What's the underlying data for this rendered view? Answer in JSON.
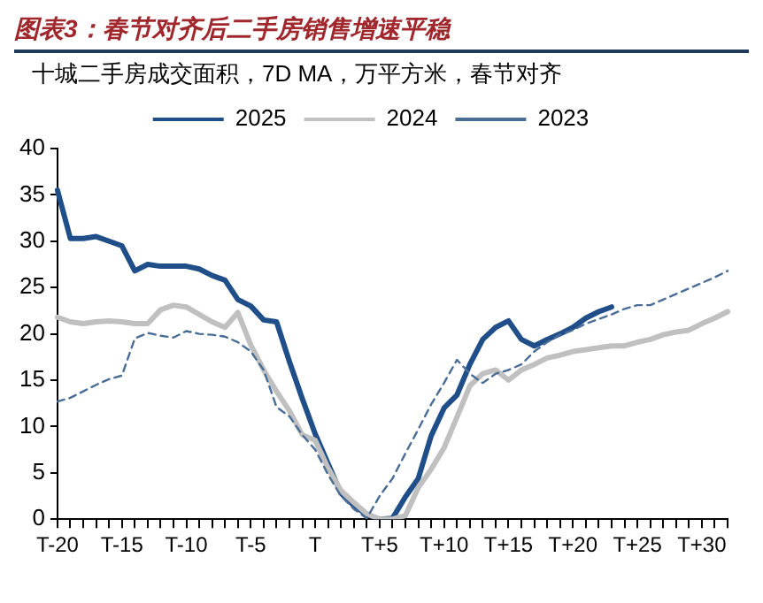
{
  "chart_data": {
    "type": "line",
    "title": "图表3：春节对齐后二手房销售增速平稳",
    "subtitle": "十城二手房成交面积，7D MA，万平方米，春节对齐",
    "categories": [
      "T-20",
      null,
      null,
      null,
      null,
      "T-15",
      null,
      null,
      null,
      null,
      "T-10",
      null,
      null,
      null,
      null,
      "T-5",
      null,
      null,
      null,
      null,
      "T",
      null,
      null,
      null,
      null,
      "T+5",
      null,
      null,
      null,
      null,
      "T+10",
      null,
      null,
      null,
      null,
      "T+15",
      null,
      null,
      null,
      null,
      "T+20",
      null,
      null,
      null,
      null,
      "T+25",
      null,
      null,
      null,
      null,
      "T+30",
      null,
      null
    ],
    "series": [
      {
        "name": "2025",
        "color": "#1f4e89",
        "values": [
          35.5,
          30.3,
          30.3,
          30.5,
          30,
          29.5,
          26.8,
          27.5,
          27.3,
          27.3,
          27.3,
          27,
          26.3,
          25.8,
          23.7,
          23,
          21.5,
          21.3,
          17,
          13,
          9.2,
          6,
          2.8,
          1.5,
          0.5,
          0,
          0.1,
          2.4,
          4.4,
          9,
          12,
          13.4,
          16.7,
          19.4,
          20.7,
          21.4,
          19.4,
          18.7,
          19.4,
          20,
          20.7,
          21.7,
          22.4,
          22.9,
          null,
          null,
          null,
          null,
          null,
          null,
          null,
          null,
          null
        ]
      },
      {
        "name": "2024",
        "color": "#c0c0c0",
        "values": [
          21.8,
          21.3,
          21.1,
          21.3,
          21.4,
          21.3,
          21.1,
          21.1,
          22.6,
          23.1,
          22.9,
          22.1,
          21.3,
          20.7,
          22.3,
          18.8,
          16.1,
          13.8,
          11.7,
          9.1,
          8.5,
          5.5,
          3.1,
          1.8,
          0.6,
          0,
          0,
          0.4,
          3.4,
          5.4,
          7.7,
          11,
          14.4,
          15.7,
          16.1,
          15,
          16.1,
          16.7,
          17.4,
          17.7,
          18.1,
          18.3,
          18.5,
          18.7,
          18.7,
          19.1,
          19.4,
          19.9,
          20.2,
          20.4,
          21.1,
          21.7,
          22.4
        ]
      },
      {
        "name": "2023",
        "color": "#4a6d96",
        "line_style": "dashed",
        "values": [
          12.7,
          13.1,
          13.8,
          14.5,
          15.1,
          15.5,
          19.5,
          20.1,
          19.8,
          19.6,
          20.3,
          20,
          19.9,
          19.7,
          19.1,
          18.1,
          16.1,
          12.1,
          11.1,
          9.1,
          7.5,
          4.8,
          2.5,
          1.1,
          0.1,
          2.5,
          4.4,
          7.1,
          9.7,
          12.4,
          14.7,
          17.2,
          15.7,
          14.7,
          15.7,
          16.1,
          16.7,
          18.1,
          19.1,
          19.9,
          20.4,
          21.1,
          21.6,
          22.1,
          22.7,
          23.1,
          23.1,
          23.7,
          24.3,
          24.9,
          25.5,
          26.1,
          26.8
        ]
      }
    ],
    "ylim": [
      0,
      40
    ],
    "yticks": [
      0,
      5,
      10,
      15,
      20,
      25,
      30,
      35,
      40
    ],
    "grid": false,
    "legend": "top",
    "marker": "none",
    "line_style": "solid"
  }
}
